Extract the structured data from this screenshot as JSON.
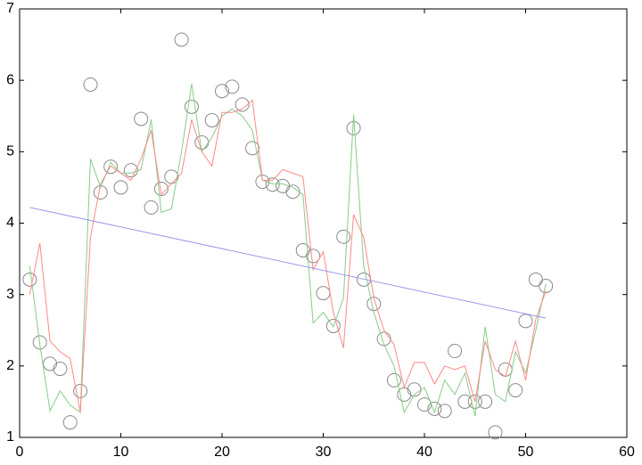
{
  "chart_data": {
    "type": "scatter",
    "xlim": [
      0,
      60
    ],
    "ylim": [
      1,
      7
    ],
    "xticks": [
      0,
      10,
      20,
      30,
      40,
      50,
      60
    ],
    "yticks": [
      1,
      2,
      3,
      4,
      5,
      6,
      7
    ],
    "series": [
      {
        "type": "scatter",
        "color": "#8a8a8a",
        "x": [
          1,
          2,
          3,
          4,
          5,
          6,
          7,
          8,
          9,
          10,
          11,
          12,
          13,
          14,
          15,
          16,
          17,
          18,
          19,
          20,
          21,
          22,
          23,
          24,
          25,
          26,
          27,
          28,
          29,
          30,
          31,
          32,
          33,
          34,
          35,
          36,
          37,
          38,
          39,
          40,
          41,
          42,
          43,
          44,
          45,
          46,
          47,
          48,
          49,
          50,
          51,
          52
        ],
        "values": [
          3.21,
          2.33,
          2.03,
          1.96,
          1.21,
          1.65,
          5.94,
          4.43,
          4.79,
          4.5,
          4.74,
          5.46,
          4.22,
          4.48,
          4.65,
          6.57,
          5.63,
          5.13,
          5.44,
          5.85,
          5.91,
          5.66,
          5.05,
          4.58,
          4.54,
          4.52,
          4.44,
          3.62,
          3.54,
          3.02,
          2.56,
          3.81,
          5.33,
          3.21,
          2.87,
          2.38,
          1.8,
          1.6,
          1.67,
          1.46,
          1.4,
          1.37,
          2.21,
          1.5,
          1.5,
          1.5,
          1.07,
          1.95,
          1.66,
          2.63,
          3.21,
          3.12
        ]
      },
      {
        "type": "line",
        "color": "#88cc88",
        "x": [
          1,
          2,
          3,
          4,
          5,
          6,
          7,
          8,
          9,
          10,
          11,
          12,
          13,
          14,
          15,
          16,
          17,
          18,
          19,
          20,
          21,
          22,
          23,
          24,
          25,
          26,
          27,
          28,
          29,
          30,
          31,
          32,
          33,
          34,
          35,
          36,
          37,
          38,
          39,
          40,
          41,
          42,
          43,
          44,
          45,
          46,
          47,
          48,
          49,
          50,
          51,
          52
        ],
        "values": [
          3.4,
          2.3,
          1.37,
          1.65,
          1.45,
          1.35,
          4.9,
          4.5,
          4.85,
          4.7,
          4.7,
          4.75,
          5.45,
          4.15,
          4.2,
          5.0,
          5.95,
          5.0,
          5.2,
          5.5,
          5.6,
          5.5,
          5.3,
          4.6,
          4.55,
          4.55,
          4.5,
          4.4,
          2.6,
          2.75,
          2.55,
          2.95,
          5.52,
          3.4,
          2.75,
          2.3,
          2.0,
          1.35,
          1.6,
          1.7,
          1.35,
          1.8,
          1.6,
          1.9,
          1.3,
          2.55,
          1.6,
          1.5,
          2.2,
          1.9,
          2.5,
          3.15
        ]
      },
      {
        "type": "line",
        "color": "#ff8888",
        "x": [
          1,
          2,
          3,
          4,
          5,
          6,
          7,
          8,
          9,
          10,
          11,
          12,
          13,
          14,
          15,
          16,
          17,
          18,
          19,
          20,
          21,
          22,
          23,
          24,
          25,
          26,
          27,
          28,
          29,
          30,
          31,
          32,
          33,
          34,
          35,
          36,
          37,
          38,
          39,
          40,
          41,
          42,
          43,
          44,
          45,
          46,
          47,
          48,
          49,
          50,
          51,
          52
        ],
        "values": [
          3.0,
          3.72,
          2.35,
          2.2,
          2.1,
          1.35,
          3.8,
          4.55,
          4.8,
          4.7,
          4.6,
          4.9,
          5.3,
          4.4,
          4.55,
          4.7,
          5.45,
          5.0,
          4.8,
          5.55,
          5.55,
          5.6,
          5.72,
          4.6,
          4.6,
          4.75,
          4.7,
          4.65,
          3.35,
          3.6,
          2.75,
          2.25,
          4.12,
          3.8,
          2.95,
          2.5,
          2.3,
          1.7,
          2.05,
          2.05,
          1.75,
          2.0,
          1.95,
          2.0,
          1.5,
          2.35,
          1.95,
          1.85,
          2.35,
          1.8,
          2.65,
          3.05
        ]
      },
      {
        "type": "line",
        "color": "#9999ee",
        "x": [
          1,
          52
        ],
        "values": [
          4.22,
          2.67
        ]
      }
    ]
  }
}
